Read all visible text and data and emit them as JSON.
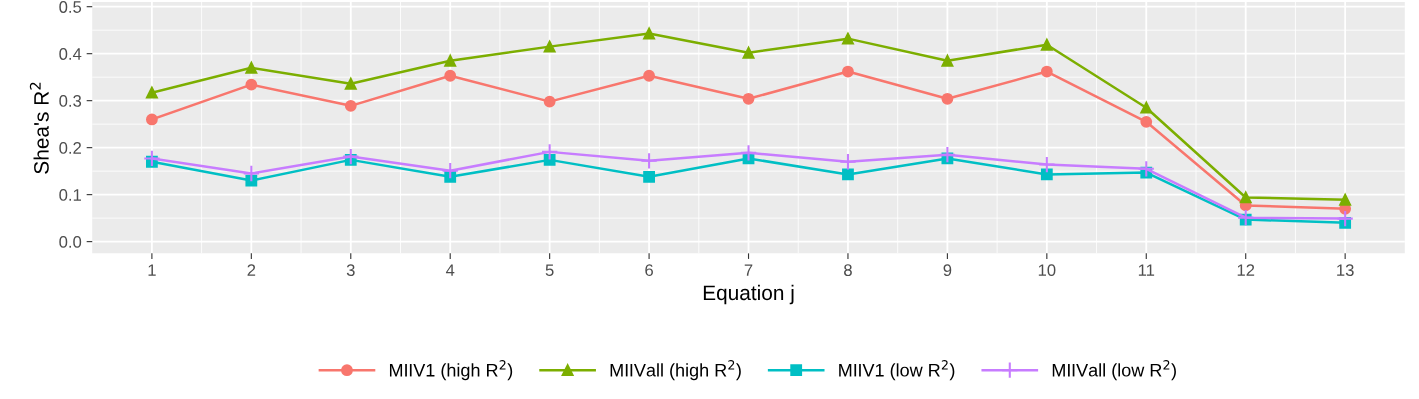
{
  "chart_data": {
    "type": "line",
    "xlabel": "Equation j",
    "ylabel": "Shea's R$^{2}$",
    "x": [
      1,
      2,
      3,
      4,
      5,
      6,
      7,
      8,
      9,
      10,
      11,
      12,
      13
    ],
    "xlim": [
      0.4,
      13.6
    ],
    "xticks": [
      1,
      2,
      3,
      4,
      5,
      6,
      7,
      8,
      9,
      10,
      11,
      12,
      13
    ],
    "ylim": [
      -0.025,
      0.51
    ],
    "yticks": [
      {
        "value": 0,
        "label": "0.0"
      },
      0.1,
      0.2,
      0.3,
      0.4,
      0.5
    ],
    "grid": true,
    "legend": "bottom",
    "line_style": "solid",
    "series": [
      {
        "name": "MIIV1 (high R$^{2}$)",
        "color": "#f8766d",
        "marker": "circle",
        "values": [
          0.26,
          0.334,
          0.289,
          0.353,
          0.298,
          0.353,
          0.304,
          0.362,
          0.304,
          0.362,
          0.255,
          0.077,
          0.07
        ]
      },
      {
        "name": "MIIVall (high R$^{2}$)",
        "color": "#7cae00",
        "marker": "triangle",
        "values": [
          0.317,
          0.37,
          0.336,
          0.385,
          0.415,
          0.443,
          0.402,
          0.432,
          0.385,
          0.419,
          0.285,
          0.094,
          0.089
        ]
      },
      {
        "name": "MIIV1 (low R$^{2}$)",
        "color": "#00bfc4",
        "marker": "square",
        "values": [
          0.17,
          0.13,
          0.174,
          0.138,
          0.174,
          0.138,
          0.177,
          0.143,
          0.177,
          0.143,
          0.147,
          0.047,
          0.04
        ]
      },
      {
        "name": "MIIVall (low R$^{2}$)",
        "color": "#c77cff",
        "marker": "cross",
        "values": [
          0.177,
          0.145,
          0.181,
          0.151,
          0.191,
          0.172,
          0.189,
          0.17,
          0.185,
          0.164,
          0.155,
          0.051,
          0.049
        ]
      }
    ]
  }
}
